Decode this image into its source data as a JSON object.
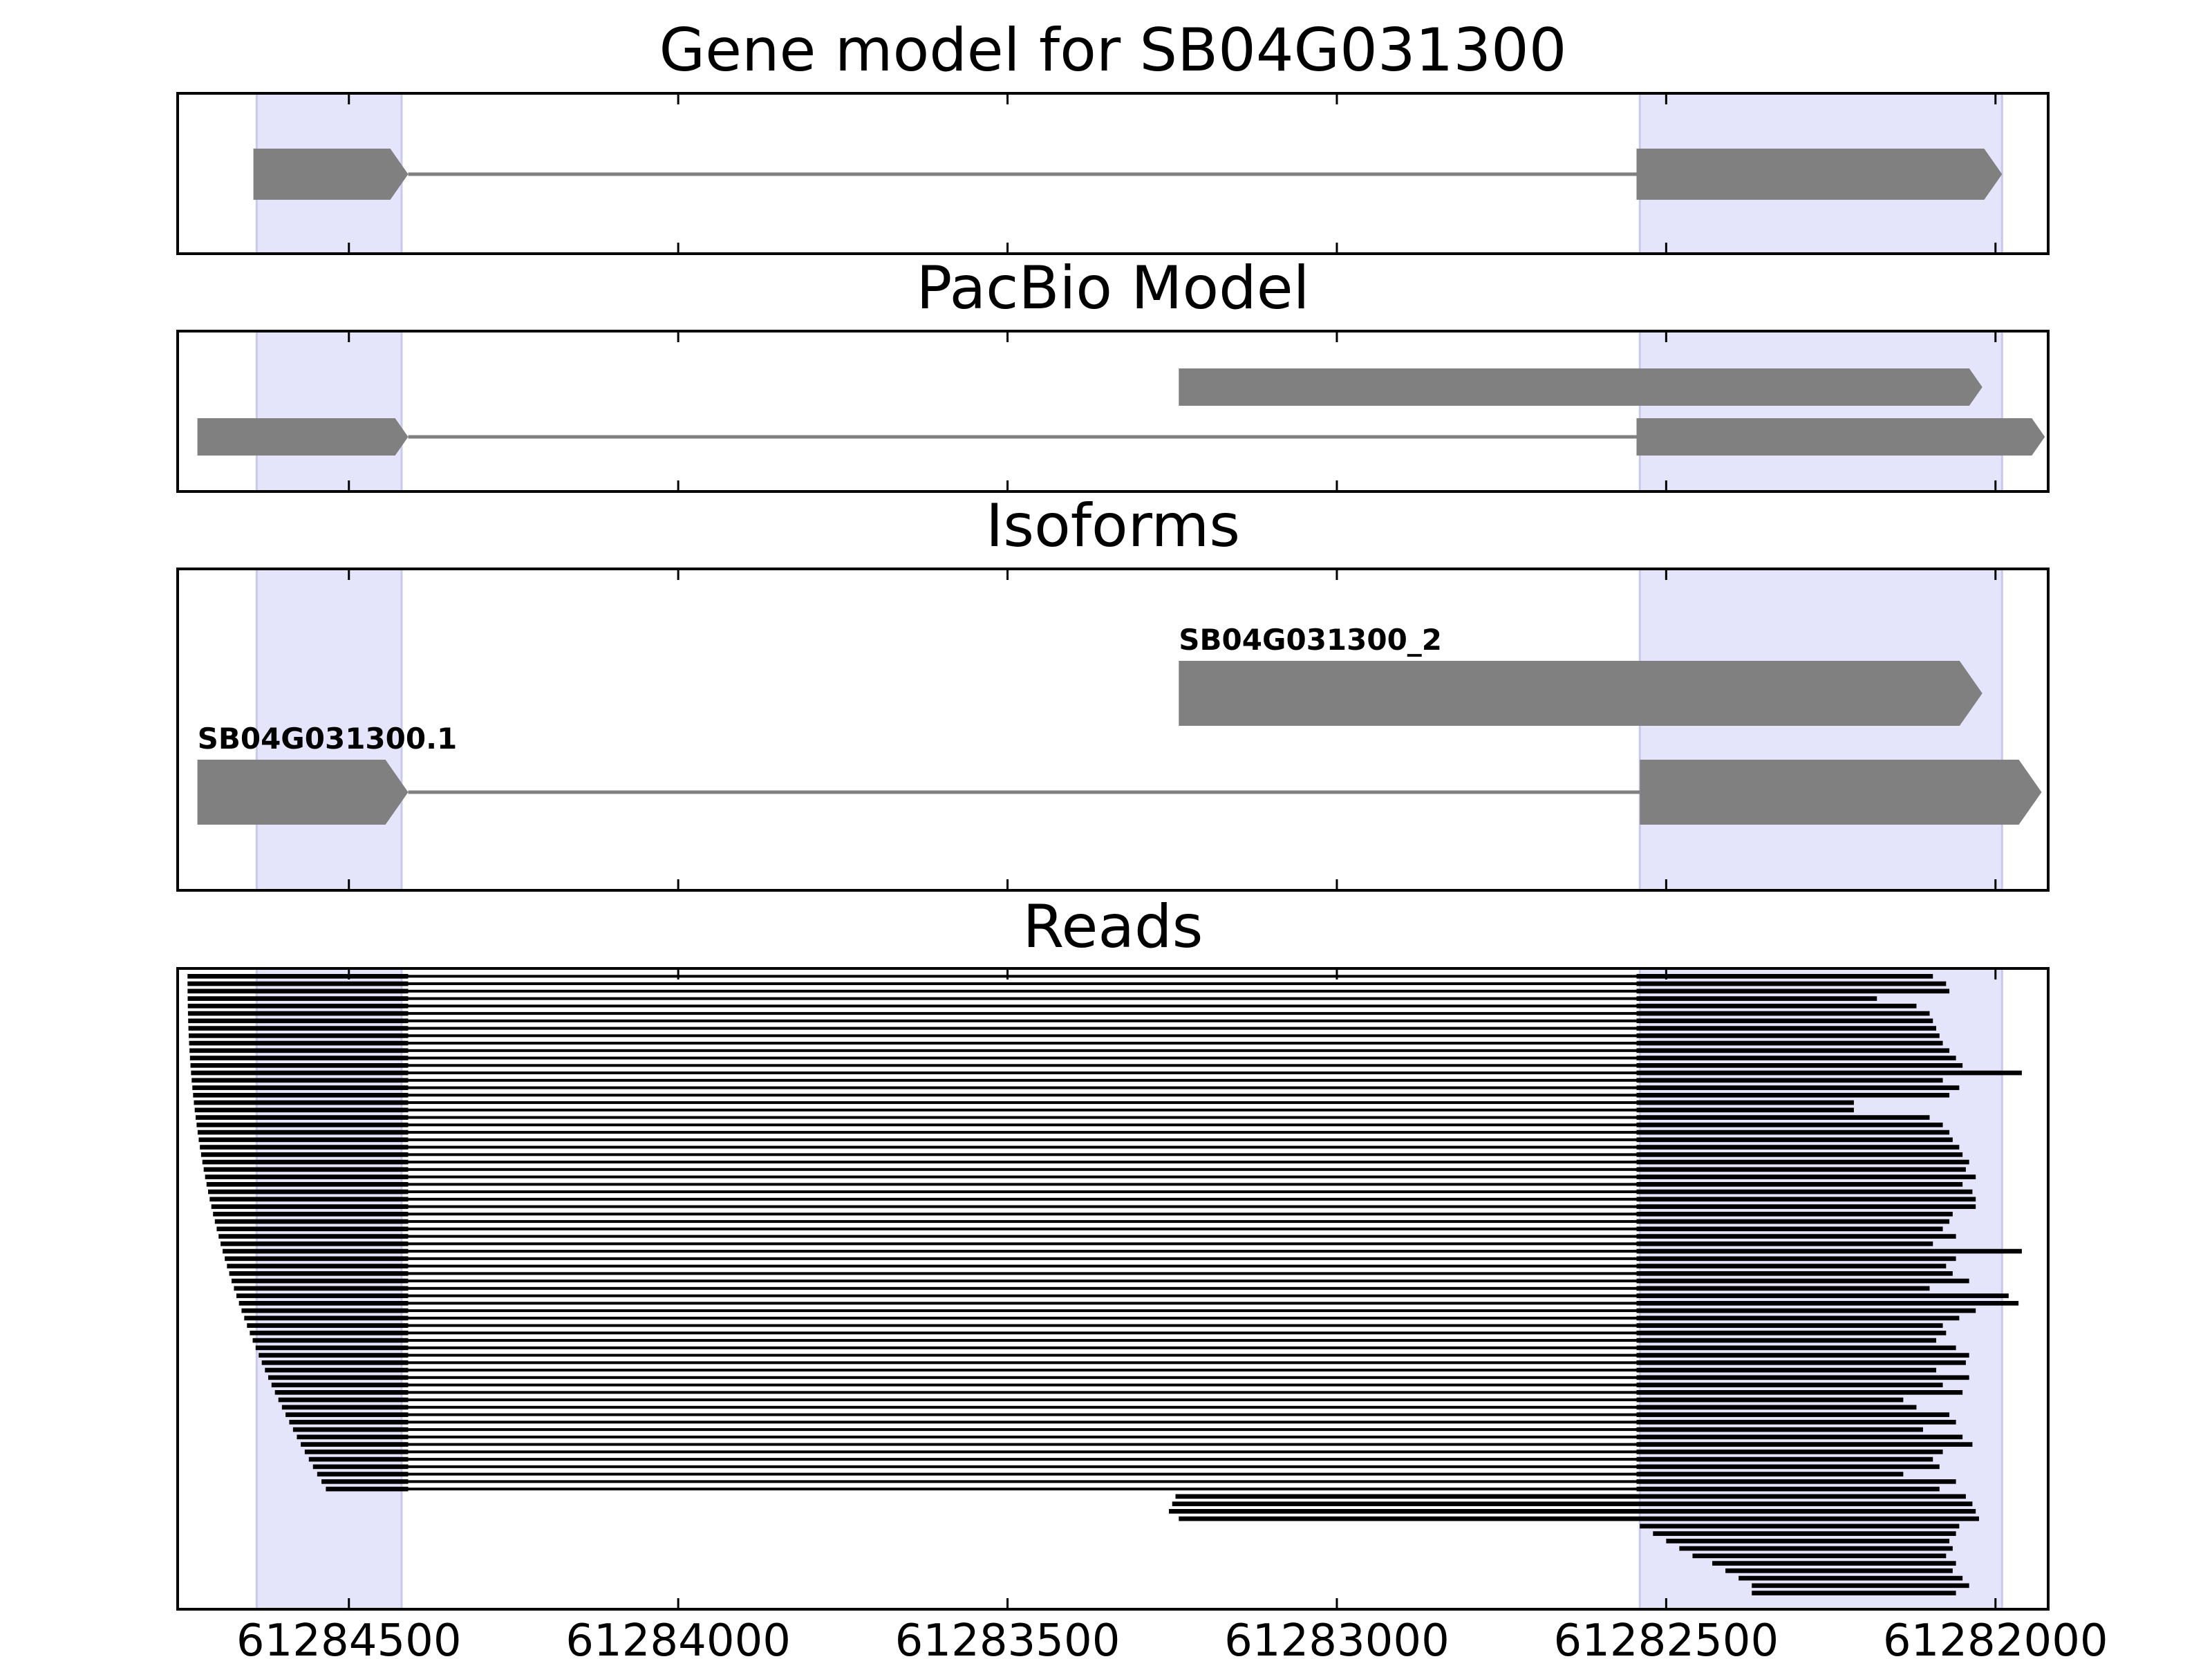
{
  "chart_data": {
    "type": "gene-model-tracks",
    "x_axis": {
      "xlim": [
        61284760,
        61281920
      ],
      "inverted": true,
      "ticks": [
        61284500,
        61284000,
        61283500,
        61283000,
        61282500,
        61282000
      ],
      "tick_labels": [
        "61284500",
        "61284000",
        "61283500",
        "61283000",
        "61282500",
        "61282000"
      ]
    },
    "exon_highlights": [
      {
        "start": 61284640,
        "end": 61284420
      },
      {
        "start": 61282540,
        "end": 61281990
      }
    ],
    "colors": {
      "feature": "#808080",
      "intron": "#808080",
      "read": "#000000",
      "highlight": "#e4e4fb",
      "highlight_edge": "#c9c9ee"
    },
    "panels": [
      {
        "id": "gene",
        "title": "Gene model for SB04G031300",
        "rows": 1,
        "tracks": [
          {
            "row": 0,
            "label": "",
            "exons": [
              [
                61284645,
                61284410
              ],
              [
                61282545,
                61281990
              ]
            ]
          }
        ]
      },
      {
        "id": "pacbio",
        "title": "PacBio Model",
        "rows": 2,
        "tracks": [
          {
            "row": 0,
            "label": "",
            "exons": [
              [
                61283240,
                61282020
              ]
            ]
          },
          {
            "row": 1,
            "label": "",
            "exons": [
              [
                61284730,
                61284410
              ],
              [
                61282545,
                61281925
              ]
            ]
          }
        ]
      },
      {
        "id": "isoforms",
        "title": "Isoforms",
        "rows": 2,
        "tracks": [
          {
            "row": 0,
            "label": "SB04G031300_2",
            "exons": [
              [
                61283240,
                61282020
              ]
            ]
          },
          {
            "row": 1,
            "label": "SB04G031300.1",
            "exons": [
              [
                61284730,
                61284410
              ],
              [
                61282540,
                61281930
              ]
            ]
          }
        ]
      },
      {
        "id": "reads",
        "title": "Reads",
        "read_count": 84,
        "spliced_reads": {
          "count": 70,
          "intron": [
            61284410,
            61282545
          ],
          "left_start_range": [
            61284745,
            61284535
          ],
          "right_end_values": [
            61282095,
            61282075,
            61282070,
            61282180,
            61282120,
            61282100,
            61282095,
            61282090,
            61282085,
            61282080,
            61282070,
            61282060,
            61282050,
            61281960,
            61282080,
            61282055,
            61282070,
            61282215,
            61282215,
            61282100,
            61282080,
            61282070,
            61282065,
            61282055,
            61282050,
            61282040,
            61282045,
            61282030,
            61282050,
            61282035,
            61282030,
            61282030,
            61282065,
            61282070,
            61282080,
            61282060,
            61282095,
            61281960,
            61282060,
            61282075,
            61282065,
            61282040,
            61282100,
            61281980,
            61281965,
            61282030,
            61282055,
            61282080,
            61282075,
            61282090,
            61282060,
            61282040,
            61282045,
            61282090,
            61282040,
            61282080,
            61282050,
            61282140,
            61282120,
            61282070,
            61282060,
            61282110,
            61282050,
            61282035,
            61282080,
            61282095,
            61282085,
            61282140,
            61282060,
            61282085
          ]
        },
        "unspliced_reads": [
          {
            "start": 61283245,
            "end": 61282045
          },
          {
            "start": 61283250,
            "end": 61282035
          },
          {
            "start": 61283255,
            "end": 61282030
          },
          {
            "start": 61283240,
            "end": 61282025
          },
          {
            "start": 61282540,
            "end": 61282055
          },
          {
            "start": 61282520,
            "end": 61282060
          },
          {
            "start": 61282500,
            "end": 61282070
          },
          {
            "start": 61282480,
            "end": 61282065
          },
          {
            "start": 61282460,
            "end": 61282075
          },
          {
            "start": 61282430,
            "end": 61282060
          },
          {
            "start": 61282410,
            "end": 61282065
          },
          {
            "start": 61282390,
            "end": 61282050
          },
          {
            "start": 61282370,
            "end": 61282040
          },
          {
            "start": 61282370,
            "end": 61282060
          }
        ]
      }
    ]
  }
}
